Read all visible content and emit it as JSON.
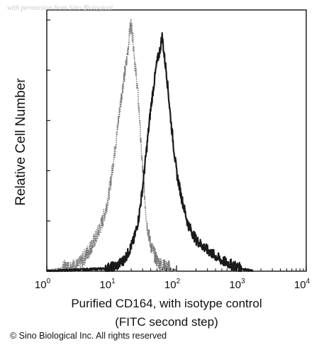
{
  "watermark": "with permission from Sino Biological",
  "copyright": "© Sino Biological Inc. All rights reserved",
  "chart_data": {
    "type": "area",
    "title": "",
    "xlabel_line1": "Purified  CD164, with isotype control",
    "xlabel_line2": "(FITC second step)",
    "ylabel": "Relative Cell Number",
    "x_scale": "log",
    "xlim": [
      1,
      10000
    ],
    "ylim": [
      0,
      100
    ],
    "x_ticks": [
      {
        "base": "10",
        "exp": "0",
        "value": 1
      },
      {
        "base": "10",
        "exp": "1",
        "value": 10
      },
      {
        "base": "10",
        "exp": "2",
        "value": 100
      },
      {
        "base": "10",
        "exp": "3",
        "value": 1000
      },
      {
        "base": "10",
        "exp": "4",
        "value": 10000
      }
    ],
    "grid": false,
    "series": [
      {
        "style": "dotted",
        "color": "#7a7a7a",
        "x": [
          1,
          3,
          4,
          5,
          6,
          7,
          8,
          9,
          10,
          11,
          12,
          13,
          14,
          15,
          16,
          17,
          18,
          19,
          20,
          21,
          22,
          23,
          25,
          27,
          29,
          32,
          35,
          40,
          50,
          60,
          80,
          100
        ],
        "y": [
          0,
          2,
          6,
          10,
          14,
          18,
          23,
          29,
          37,
          45,
          52,
          60,
          66,
          72,
          76,
          80,
          86,
          92,
          95,
          90,
          85,
          79,
          70,
          58,
          44,
          30,
          18,
          10,
          4,
          2,
          1,
          0
        ]
      },
      {
        "style": "solid",
        "color": "#1a1a1a",
        "x": [
          1,
          8,
          12,
          15,
          18,
          22,
          26,
          30,
          35,
          40,
          45,
          50,
          55,
          60,
          65,
          70,
          75,
          80,
          90,
          100,
          120,
          150,
          200,
          300,
          500,
          800,
          1000,
          1500
        ],
        "y": [
          0,
          1,
          2,
          4,
          7,
          12,
          20,
          32,
          48,
          62,
          72,
          80,
          84,
          90,
          82,
          76,
          68,
          60,
          48,
          38,
          28,
          18,
          12,
          8,
          4,
          2,
          1,
          0
        ]
      }
    ]
  }
}
